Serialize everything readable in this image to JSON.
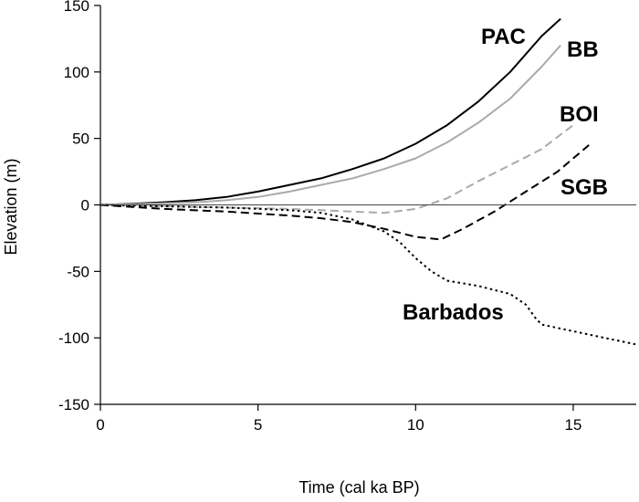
{
  "chart_data": {
    "type": "line",
    "title": "",
    "xlabel": "Time (cal ka BP)",
    "ylabel": "Elevation (m)",
    "xlim": [
      0,
      17
    ],
    "ylim": [
      -150,
      150
    ],
    "xticks": [
      0,
      5,
      10,
      15
    ],
    "xtick_labels": [
      "0",
      "5",
      "10",
      "15"
    ],
    "yticks": [
      150,
      100,
      50,
      0,
      -50,
      -100,
      -150
    ],
    "ytick_labels": [
      "150",
      "100",
      "50",
      "0",
      "-50",
      "-100",
      "-150"
    ],
    "zero_line": true,
    "grid": false,
    "legend": "none (series labeled directly on plot)",
    "series": [
      {
        "name": "PAC",
        "color": "#000000",
        "style": "solid",
        "x": [
          0,
          1,
          2,
          3,
          4,
          5,
          6,
          7,
          8,
          9,
          10,
          11,
          12,
          13,
          14,
          14.6
        ],
        "y": [
          0,
          0.8,
          2,
          3.5,
          6,
          10,
          15,
          20,
          27,
          35,
          46,
          60,
          78,
          100,
          127,
          140
        ]
      },
      {
        "name": "BB",
        "color": "#aaaaaa",
        "style": "solid",
        "x": [
          0,
          1,
          2,
          3,
          4,
          5,
          6,
          7,
          8,
          9,
          10,
          11,
          12,
          13,
          14,
          14.6
        ],
        "y": [
          0,
          0.5,
          1.2,
          2,
          3.5,
          6,
          10,
          15,
          20,
          27,
          35,
          47,
          62,
          80,
          104,
          120
        ]
      },
      {
        "name": "BOI",
        "color": "#aaaaaa",
        "style": "dashed",
        "x": [
          0,
          2,
          4,
          6,
          7,
          8,
          9,
          10,
          11,
          12,
          13,
          14,
          15
        ],
        "y": [
          0,
          -1,
          -2,
          -3,
          -4,
          -5,
          -6,
          -3,
          5,
          18,
          30,
          42,
          60
        ]
      },
      {
        "name": "SGB",
        "color": "#000000",
        "style": "dashed",
        "x": [
          0,
          2,
          4,
          6,
          7,
          8,
          9,
          10,
          10.8,
          11.5,
          12.5,
          13.5,
          14.5,
          15.5
        ],
        "y": [
          0,
          -3,
          -5,
          -8,
          -10,
          -13,
          -18,
          -24,
          -26,
          -18,
          -5,
          10,
          25,
          45
        ]
      },
      {
        "name": "Barbados",
        "color": "#000000",
        "style": "dotted",
        "x": [
          0,
          2,
          4,
          6,
          7,
          8,
          9,
          9.5,
          10,
          10.5,
          11,
          11.5,
          12,
          13,
          13.5,
          13.8,
          14,
          15,
          16,
          17
        ],
        "y": [
          0,
          -1,
          -2,
          -4,
          -6,
          -11,
          -20,
          -28,
          -40,
          -50,
          -57,
          -59,
          -61,
          -67,
          -75,
          -85,
          -90,
          -95,
          -100,
          -105
        ]
      }
    ]
  }
}
